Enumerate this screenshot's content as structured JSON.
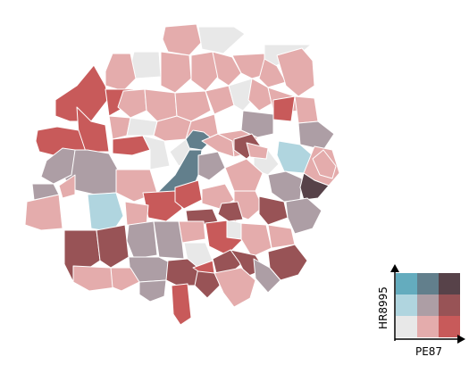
{
  "palette": {
    "low_low": "#e8e8e8",
    "low_mid": "#e4acac",
    "low_high": "#c85a5a",
    "mid_low": "#b0d5df",
    "mid_mid": "#ad9ea5",
    "mid_high": "#985356",
    "high_low": "#64acbe",
    "high_mid": "#627f8c",
    "high_high": "#574249"
  },
  "legend": {
    "x_label": "PE87",
    "y_label": "HR8995",
    "cells": [
      [
        "high_low",
        "high_mid",
        "high_high"
      ],
      [
        "mid_low",
        "mid_mid",
        "mid_high"
      ],
      [
        "low_low",
        "low_mid",
        "low_high"
      ]
    ]
  },
  "regions": [
    {
      "name": "region-01",
      "cls": "low_mid"
    },
    {
      "name": "region-02",
      "cls": "low_low"
    },
    {
      "name": "region-03",
      "cls": "low_low"
    },
    {
      "name": "region-04",
      "cls": "low_mid"
    },
    {
      "name": "region-05",
      "cls": "low_mid"
    },
    {
      "name": "region-06",
      "cls": "low_mid"
    },
    {
      "name": "region-07",
      "cls": "low_mid"
    },
    {
      "name": "region-08",
      "cls": "low_mid"
    },
    {
      "name": "region-09",
      "cls": "low_low"
    },
    {
      "name": "region-10",
      "cls": "low_mid"
    },
    {
      "name": "region-11",
      "cls": "low_mid"
    },
    {
      "name": "region-12",
      "cls": "low_high"
    },
    {
      "name": "region-13",
      "cls": "low_high"
    },
    {
      "name": "region-14",
      "cls": "low_high"
    },
    {
      "name": "region-15",
      "cls": "low_high"
    },
    {
      "name": "region-16",
      "cls": "low_mid"
    },
    {
      "name": "region-17",
      "cls": "low_mid"
    },
    {
      "name": "region-18",
      "cls": "low_mid"
    },
    {
      "name": "region-19",
      "cls": "low_mid"
    },
    {
      "name": "region-20",
      "cls": "low_low"
    },
    {
      "name": "region-21",
      "cls": "low_mid"
    },
    {
      "name": "region-22",
      "cls": "low_mid"
    },
    {
      "name": "region-23",
      "cls": "low_high"
    },
    {
      "name": "region-24",
      "cls": "low_mid"
    },
    {
      "name": "region-25",
      "cls": "low_mid"
    },
    {
      "name": "region-26",
      "cls": "low_low"
    },
    {
      "name": "region-27",
      "cls": "low_mid"
    },
    {
      "name": "region-28",
      "cls": "low_high"
    },
    {
      "name": "region-29",
      "cls": "low_mid"
    },
    {
      "name": "region-30",
      "cls": "mid_mid"
    },
    {
      "name": "region-31",
      "cls": "mid_mid"
    },
    {
      "name": "region-32",
      "cls": "mid_mid"
    },
    {
      "name": "region-33",
      "cls": "low_low"
    },
    {
      "name": "region-34",
      "cls": "mid_low"
    },
    {
      "name": "region-35",
      "cls": "low_mid"
    },
    {
      "name": "region-36",
      "cls": "low_low"
    },
    {
      "name": "region-37",
      "cls": "high_mid"
    },
    {
      "name": "region-38",
      "cls": "high_mid"
    },
    {
      "name": "region-39",
      "cls": "mid_mid"
    },
    {
      "name": "region-40",
      "cls": "low_mid"
    },
    {
      "name": "region-41",
      "cls": "low_mid"
    },
    {
      "name": "region-42",
      "cls": "mid_high"
    },
    {
      "name": "region-43",
      "cls": "low_low"
    },
    {
      "name": "region-44",
      "cls": "mid_low"
    },
    {
      "name": "region-45",
      "cls": "low_mid"
    },
    {
      "name": "region-46",
      "cls": "low_mid"
    },
    {
      "name": "region-47",
      "cls": "mid_mid"
    },
    {
      "name": "region-48",
      "cls": "high_high"
    },
    {
      "name": "region-49",
      "cls": "low_mid"
    },
    {
      "name": "region-50",
      "cls": "low_high"
    },
    {
      "name": "region-51",
      "cls": "low_high"
    },
    {
      "name": "region-52",
      "cls": "low_mid"
    },
    {
      "name": "region-53",
      "cls": "low_mid"
    },
    {
      "name": "region-54",
      "cls": "mid_high"
    },
    {
      "name": "region-55",
      "cls": "low_mid"
    },
    {
      "name": "region-56",
      "cls": "mid_high"
    },
    {
      "name": "region-57",
      "cls": "mid_mid"
    },
    {
      "name": "region-58",
      "cls": "low_mid"
    },
    {
      "name": "region-59",
      "cls": "mid_mid"
    },
    {
      "name": "region-60",
      "cls": "mid_mid"
    },
    {
      "name": "region-61",
      "cls": "low_high"
    },
    {
      "name": "region-62",
      "cls": "low_mid"
    },
    {
      "name": "region-63",
      "cls": "mid_high"
    },
    {
      "name": "region-64",
      "cls": "mid_high"
    },
    {
      "name": "region-65",
      "cls": "low_mid"
    },
    {
      "name": "region-66",
      "cls": "mid_mid"
    },
    {
      "name": "region-67",
      "cls": "low_low"
    },
    {
      "name": "region-68",
      "cls": "low_mid"
    },
    {
      "name": "region-69",
      "cls": "low_mid"
    },
    {
      "name": "region-70",
      "cls": "mid_mid"
    },
    {
      "name": "region-71",
      "cls": "mid_mid"
    },
    {
      "name": "region-72",
      "cls": "mid_high"
    },
    {
      "name": "region-73",
      "cls": "mid_high"
    },
    {
      "name": "region-74",
      "cls": "low_low"
    },
    {
      "name": "region-75",
      "cls": "low_mid"
    },
    {
      "name": "region-76",
      "cls": "mid_high"
    },
    {
      "name": "region-77",
      "cls": "mid_high"
    },
    {
      "name": "region-78",
      "cls": "mid_high"
    },
    {
      "name": "region-79",
      "cls": "low_high"
    },
    {
      "name": "region-80",
      "cls": "mid_mid"
    },
    {
      "name": "region-81",
      "cls": "low_mid"
    },
    {
      "name": "region-82",
      "cls": "mid_mid"
    },
    {
      "name": "region-83",
      "cls": "low_high"
    },
    {
      "name": "region-84",
      "cls": "low_mid"
    },
    {
      "name": "region-85",
      "cls": "low_mid"
    },
    {
      "name": "region-86",
      "cls": "mid_high"
    }
  ]
}
